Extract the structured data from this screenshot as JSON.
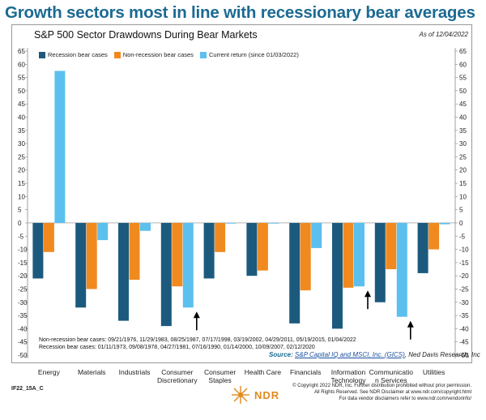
{
  "headline": "Growth sectors most in line with recessionary bear averages",
  "chart_data": {
    "type": "bar",
    "title": "S&P 500 Sector Drawdowns During Bear Markets",
    "as_of": "As of 12/04/2022",
    "categories": [
      [
        "Energy"
      ],
      [
        "Materials"
      ],
      [
        "Industrials"
      ],
      [
        "Consumer",
        "Discretionary"
      ],
      [
        "Consumer",
        "Staples"
      ],
      [
        "Health Care"
      ],
      [
        "Financials"
      ],
      [
        "Information",
        "Technology"
      ],
      [
        "Communicatio",
        "n Services"
      ],
      [
        "Utilities"
      ]
    ],
    "series": [
      {
        "name": "Recession bear cases",
        "color": "#1c5a7d",
        "values": [
          -21,
          -32,
          -37,
          -39,
          -21,
          -20,
          -38,
          -40,
          -30,
          -19
        ]
      },
      {
        "name": "Non-recession bear cases",
        "color": "#f08a1f",
        "values": [
          -11,
          -25,
          -21.5,
          -24,
          -11,
          -18,
          -25.5,
          -24.5,
          -17.5,
          -10
        ]
      },
      {
        "name": "Current return (since 01/03/2022)",
        "color": "#5bc0ee",
        "values": [
          57.5,
          -6.5,
          -3,
          -32,
          0,
          0,
          -9.5,
          -24,
          -35.5,
          -0.5
        ]
      }
    ],
    "ylim": [
      -50,
      65
    ],
    "yticks": [
      -50,
      -45,
      -40,
      -35,
      -30,
      -25,
      -20,
      -15,
      -10,
      -5,
      0,
      5,
      10,
      15,
      20,
      25,
      30,
      35,
      40,
      45,
      50,
      55,
      60,
      65
    ],
    "annotations": [
      {
        "type": "arrow-up",
        "category_index": 3,
        "series_index": 2
      },
      {
        "type": "arrow-up",
        "category_index": 7,
        "series_index": 2
      },
      {
        "type": "arrow-up",
        "category_index": 8,
        "series_index": 2
      }
    ],
    "notes": [
      "Non-recession bear cases: 09/21/1976, 11/29/1983, 08/25/1987, 07/17/1998, 03/19/2002, 04/29/2011, 05/19/2015, 01/04/2022",
      "Recession bear cases: 01/11/1973, 09/08/1978, 04/27/1981, 07/16/1990, 01/14/2000, 10/09/2007, 02/12/2020"
    ]
  },
  "source": {
    "label": "Source:",
    "link": "S&P Capital IQ and MSCI, Inc. (GICS)",
    "rest": ", Ned Davis Research, Inc"
  },
  "footer": {
    "code": "IF22_15A_C",
    "logo": "NDR",
    "copyright": [
      "© Copyright 2022 NDR, Inc. Further distribution prohibited without prior permission.",
      "All Rights Reserved. See NDR Disclaimer at www.ndr.com/copyright.html",
      "For data vendor disclaimers refer to www.ndr.com/vendorinfo/"
    ]
  }
}
